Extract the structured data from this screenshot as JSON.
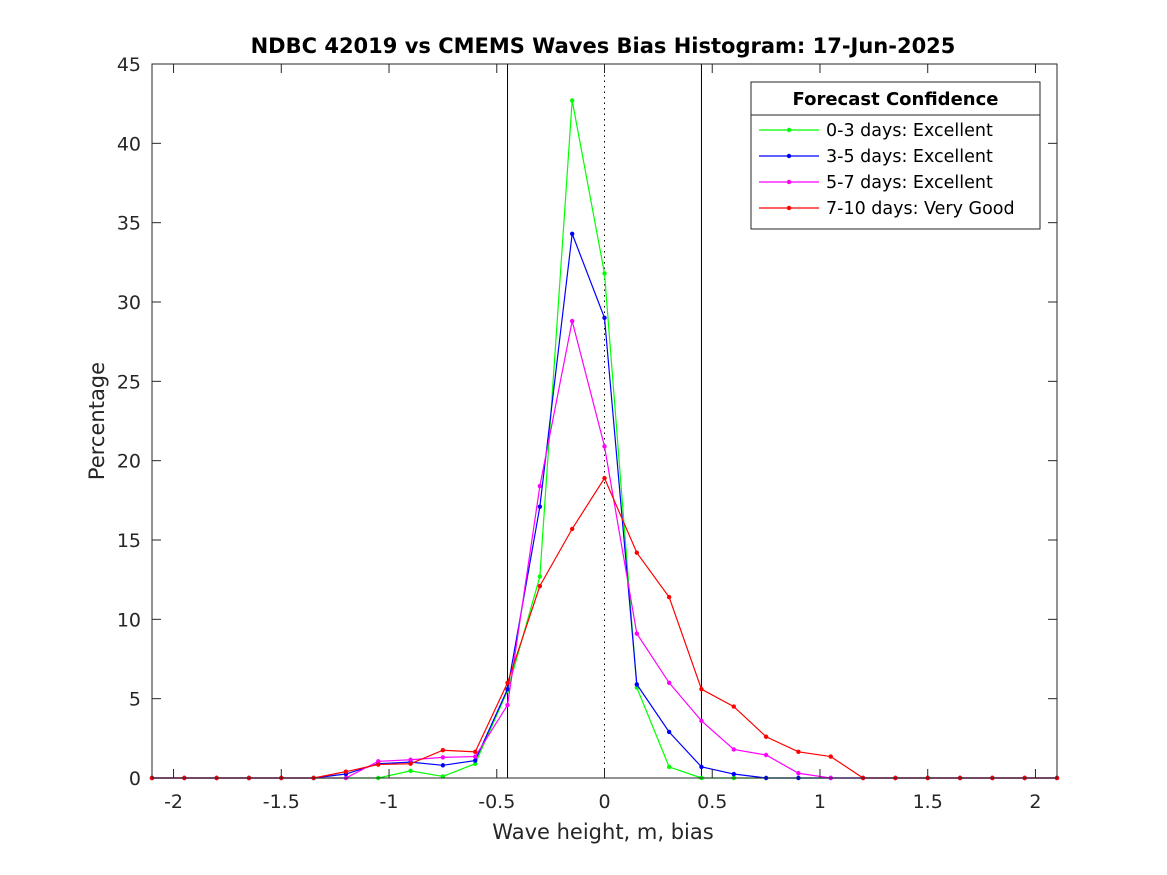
{
  "chart_data": {
    "type": "line",
    "title": "NDBC 42019 vs CMEMS Waves Bias Histogram: 17-Jun-2025",
    "xlabel": "Wave height, m, bias",
    "ylabel": "Percentage",
    "xlim": [
      -2.1,
      2.1
    ],
    "ylim": [
      0,
      45
    ],
    "xticks": [
      -2,
      -1.5,
      -1,
      -0.5,
      0,
      0.5,
      1,
      1.5,
      2
    ],
    "xtick_labels": [
      "-2",
      "-1.5",
      "-1",
      "-0.5",
      "0",
      "0.5",
      "1",
      "1.5",
      "2"
    ],
    "yticks": [
      0,
      5,
      10,
      15,
      20,
      25,
      30,
      35,
      40,
      45
    ],
    "ytick_labels": [
      "0",
      "5",
      "10",
      "15",
      "20",
      "25",
      "30",
      "35",
      "40",
      "45"
    ],
    "grid": false,
    "legend_position": "top-right",
    "legend_title": "Forecast Confidence",
    "reference_lines": {
      "solid_x": [
        -0.45,
        0.45
      ],
      "dotted_x": [
        0
      ],
      "color": "#000000"
    },
    "x": [
      -2.1,
      -1.95,
      -1.8,
      -1.65,
      -1.5,
      -1.35,
      -1.2,
      -1.05,
      -0.9,
      -0.75,
      -0.6,
      -0.45,
      -0.3,
      -0.15,
      0,
      0.15,
      0.3,
      0.45,
      0.6,
      0.75,
      0.9,
      1.05,
      1.2,
      1.35,
      1.5,
      1.65,
      1.8,
      1.95,
      2.1
    ],
    "series": [
      {
        "name": "0-3 days: Excellent",
        "color": "#00ff00",
        "values": [
          0,
          0,
          0,
          0,
          0,
          0,
          0,
          0,
          0.45,
          0.1,
          0.9,
          5.5,
          12.7,
          42.7,
          31.8,
          5.7,
          0.7,
          0,
          0,
          0,
          0,
          0,
          0,
          0,
          0,
          0,
          0,
          0,
          0
        ]
      },
      {
        "name": "3-5 days: Excellent",
        "color": "#0000ff",
        "values": [
          0,
          0,
          0,
          0,
          0,
          0,
          0.25,
          0.9,
          1.0,
          0.8,
          1.1,
          5.6,
          17.1,
          34.3,
          29.0,
          5.9,
          2.9,
          0.7,
          0.25,
          0,
          0,
          0,
          0,
          0,
          0,
          0,
          0,
          0,
          0
        ]
      },
      {
        "name": "5-7 days: Excellent",
        "color": "#ff00ff",
        "values": [
          0,
          0,
          0,
          0,
          0,
          0,
          0,
          1.05,
          1.15,
          1.3,
          1.35,
          4.6,
          18.4,
          28.8,
          20.9,
          9.1,
          6.0,
          3.6,
          1.8,
          1.45,
          0.3,
          0,
          0,
          0,
          0,
          0,
          0,
          0,
          0
        ]
      },
      {
        "name": "7-10 days: Very Good",
        "color": "#ff0000",
        "values": [
          0,
          0,
          0,
          0,
          0,
          0,
          0.4,
          0.85,
          0.9,
          1.75,
          1.65,
          6.0,
          12.1,
          15.7,
          18.9,
          14.2,
          11.4,
          5.6,
          4.5,
          2.6,
          1.65,
          1.35,
          0,
          0,
          0,
          0,
          0,
          0,
          0
        ]
      }
    ]
  }
}
